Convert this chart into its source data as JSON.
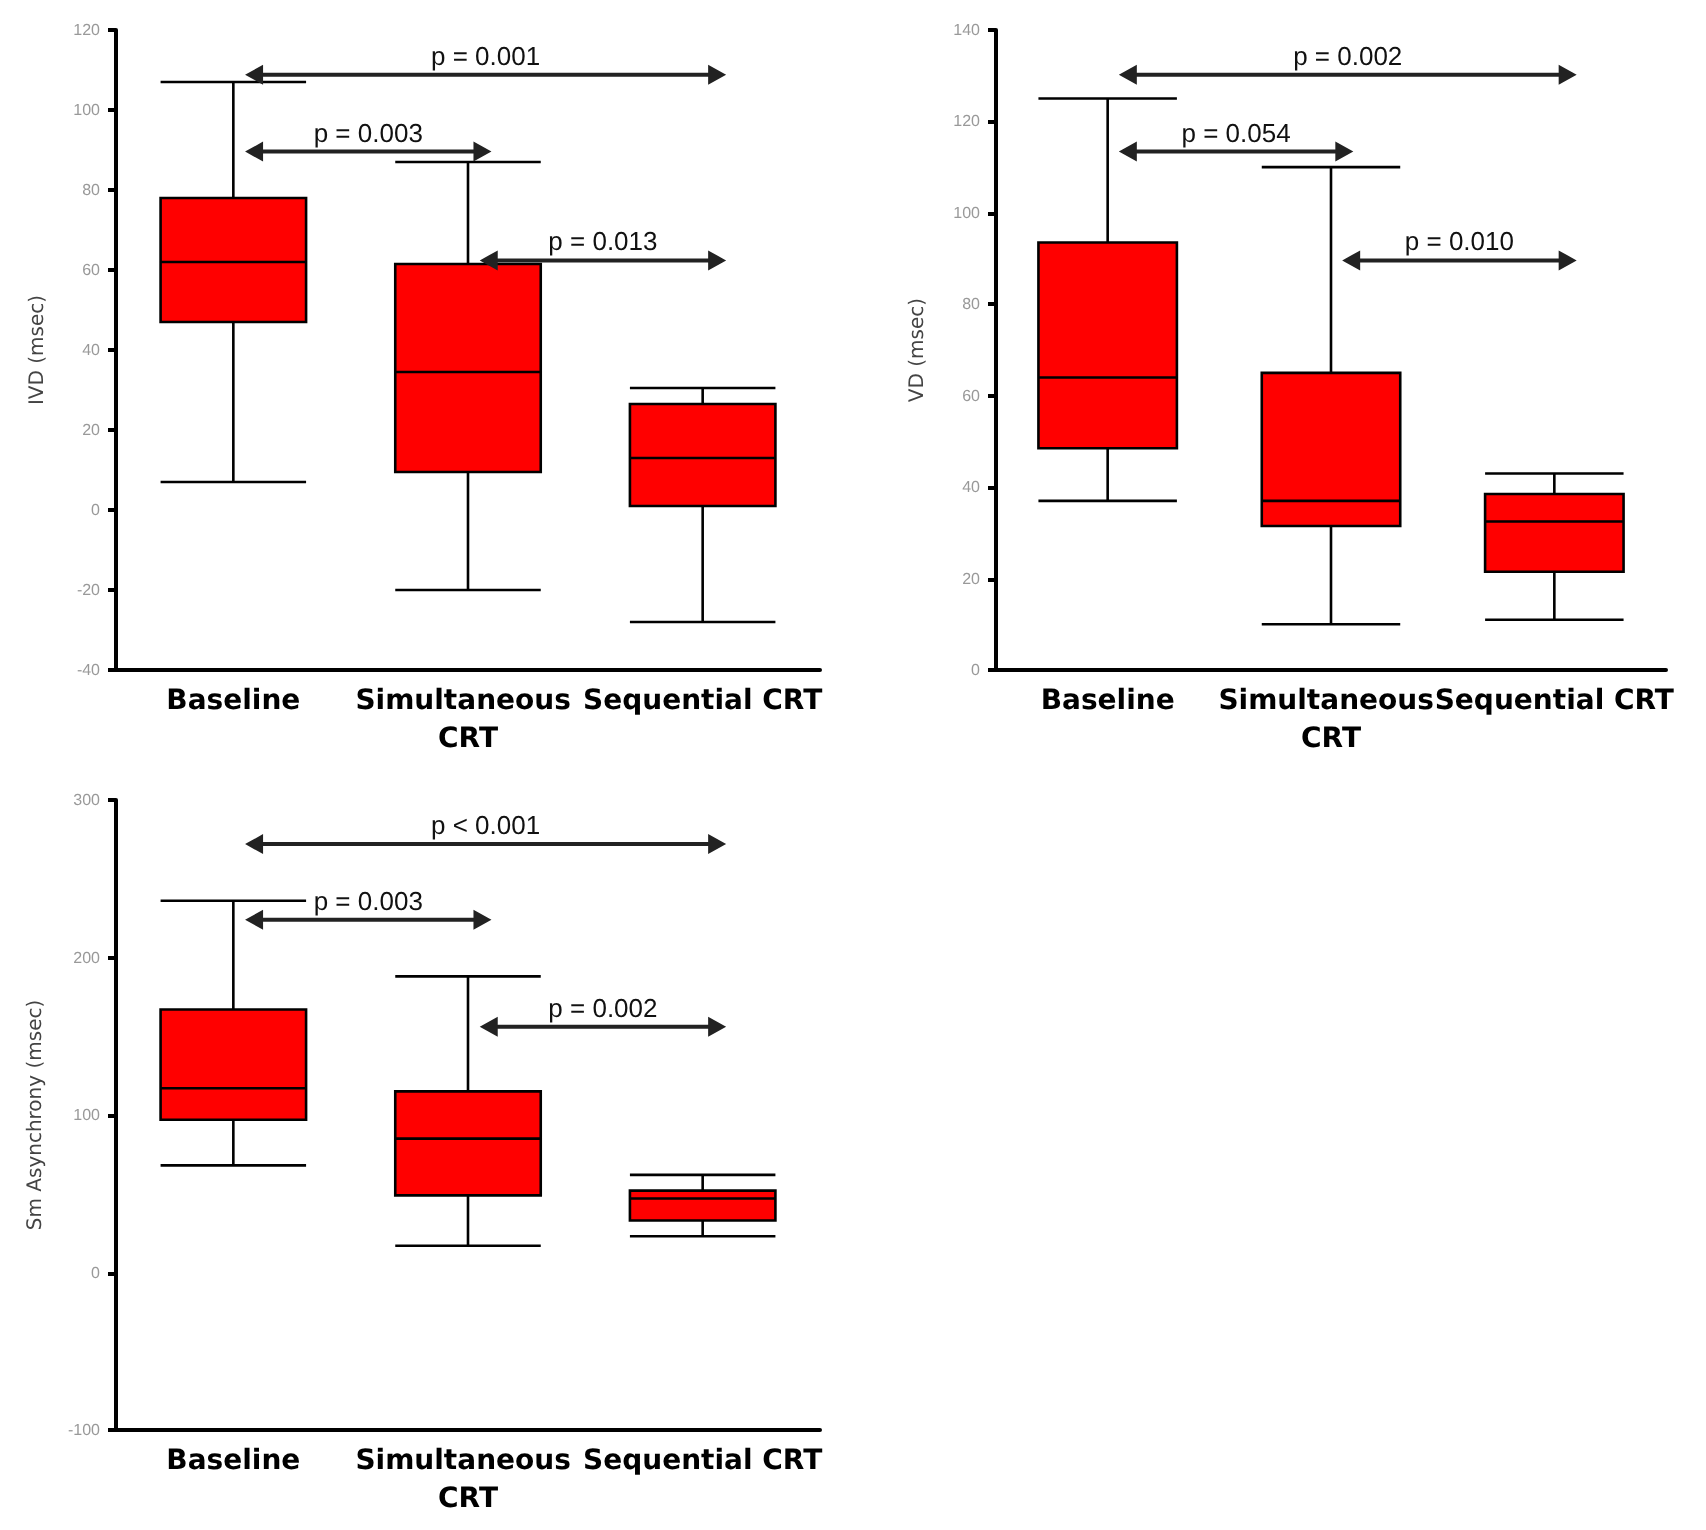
{
  "chart_data": [
    {
      "type": "box",
      "ylabel": "IVD (msec)",
      "categories": [
        "Baseline",
        "Simultaneous CRT",
        "Sequential CRT"
      ],
      "ylim": [
        -40,
        120
      ],
      "yticks": [
        -40,
        -20,
        0,
        20,
        40,
        60,
        80,
        100,
        120
      ],
      "series": [
        {
          "color": "#ff0000",
          "boxes": [
            {
              "low": 7,
              "q1": 47,
              "median": 62,
              "q3": 78,
              "high": 107
            },
            {
              "low": -20,
              "q1": 9.5,
              "median": 34.5,
              "q3": 61.5,
              "high": 87
            },
            {
              "low": -28,
              "q1": 1,
              "median": 13,
              "q3": 26.5,
              "high": 30.5
            }
          ]
        }
      ],
      "annotations": [
        "p = 0.001",
        "p = 0.003",
        "p = 0.013"
      ]
    },
    {
      "type": "box",
      "ylabel": "VD (msec)",
      "categories": [
        "Baseline",
        "Simultaneous CRT",
        "Sequential CRT"
      ],
      "ylim": [
        0,
        140
      ],
      "yticks": [
        0,
        20,
        40,
        60,
        80,
        100,
        120,
        140
      ],
      "series": [
        {
          "color": "#ff0000",
          "boxes": [
            {
              "low": 37,
              "q1": 48.5,
              "median": 64,
              "q3": 93.5,
              "high": 125
            },
            {
              "low": 10,
              "q1": 31.5,
              "median": 37,
              "q3": 65,
              "high": 110
            },
            {
              "low": 11,
              "q1": 21.5,
              "median": 32.5,
              "q3": 38.5,
              "high": 43
            }
          ]
        }
      ],
      "annotations": [
        "p = 0.002",
        "p = 0.054",
        "p = 0.010"
      ]
    },
    {
      "type": "box",
      "ylabel": "Sm Asynchrony (msec)",
      "categories": [
        "Baseline",
        "Simultaneous CRT",
        "Sequential CRT"
      ],
      "ylim": [
        -100,
        300
      ],
      "yticks": [
        -100,
        0,
        100,
        200,
        300
      ],
      "series": [
        {
          "color": "#ff0000",
          "boxes": [
            {
              "low": 68,
              "q1": 97,
              "median": 117,
              "q3": 167,
              "high": 236
            },
            {
              "low": 17,
              "q1": 49,
              "median": 85,
              "q3": 115,
              "high": 188
            },
            {
              "low": 23,
              "q1": 33,
              "median": 47,
              "q3": 52,
              "high": 62
            }
          ]
        }
      ],
      "annotations": [
        "p < 0.001",
        "p = 0.003",
        "p = 0.002"
      ]
    }
  ]
}
